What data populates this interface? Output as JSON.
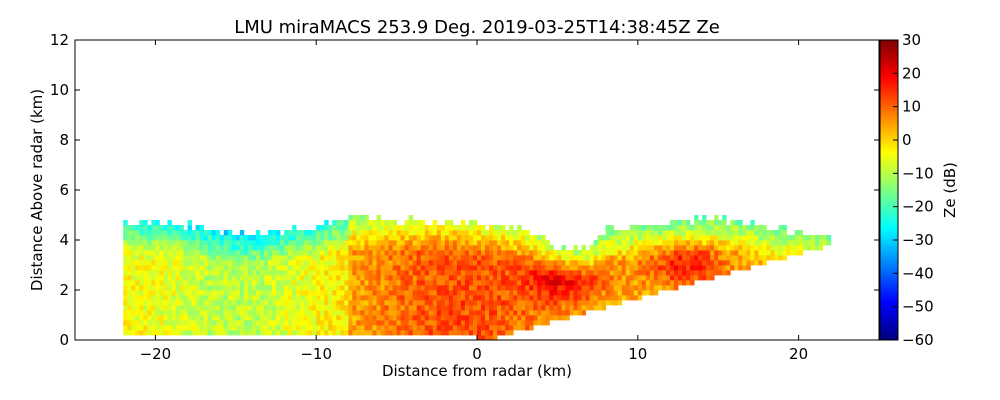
{
  "chart_data": {
    "type": "heatmap",
    "title": "LMU miraMACS 253.9 Deg. 2019-03-25T14:38:45Z  Ze",
    "xlabel": "Distance from radar (km)",
    "ylabel": "Distance Above radar  (km)",
    "xlim": [
      -25,
      25
    ],
    "ylim": [
      0,
      12
    ],
    "xticks": [
      -20,
      -10,
      0,
      10,
      20
    ],
    "xtick_labels": [
      "−20",
      "−10",
      "0",
      "10",
      "20"
    ],
    "yticks": [
      0,
      2,
      4,
      6,
      8,
      10,
      12
    ],
    "ytick_labels": [
      "0",
      "2",
      "4",
      "6",
      "8",
      "10",
      "12"
    ],
    "colorbar": {
      "label": "Ze (dB)",
      "range": [
        -60,
        30
      ],
      "ticks": [
        -60,
        -50,
        -40,
        -30,
        -20,
        -10,
        0,
        10,
        20,
        30
      ],
      "tick_labels": [
        "−60",
        "−50",
        "−40",
        "−30",
        "−20",
        "−10",
        "0",
        "10",
        "20",
        "30"
      ],
      "colormap": "jet"
    },
    "echo_region": {
      "left_edge_x_km": -22,
      "right_edge_x_km": 22,
      "bottom_sector_right_start_km": 0,
      "top_profile": [
        [
          -22,
          4.6
        ],
        [
          -18,
          4.5
        ],
        [
          -15,
          4.1
        ],
        [
          -10,
          4.4
        ],
        [
          -8,
          4.8
        ],
        [
          -4,
          4.7
        ],
        [
          0,
          4.5
        ],
        [
          3,
          4.3
        ],
        [
          5,
          3.6
        ],
        [
          7,
          3.5
        ],
        [
          8,
          4.3
        ],
        [
          12,
          4.6
        ],
        [
          15,
          4.8
        ],
        [
          18,
          4.4
        ],
        [
          22,
          4.1
        ]
      ],
      "typical_Ze_dB": [
        -35,
        28
      ],
      "max_Ze_location_km": [
        [
          5.5,
          2.4
        ],
        [
          13,
          3.0
        ]
      ]
    }
  }
}
